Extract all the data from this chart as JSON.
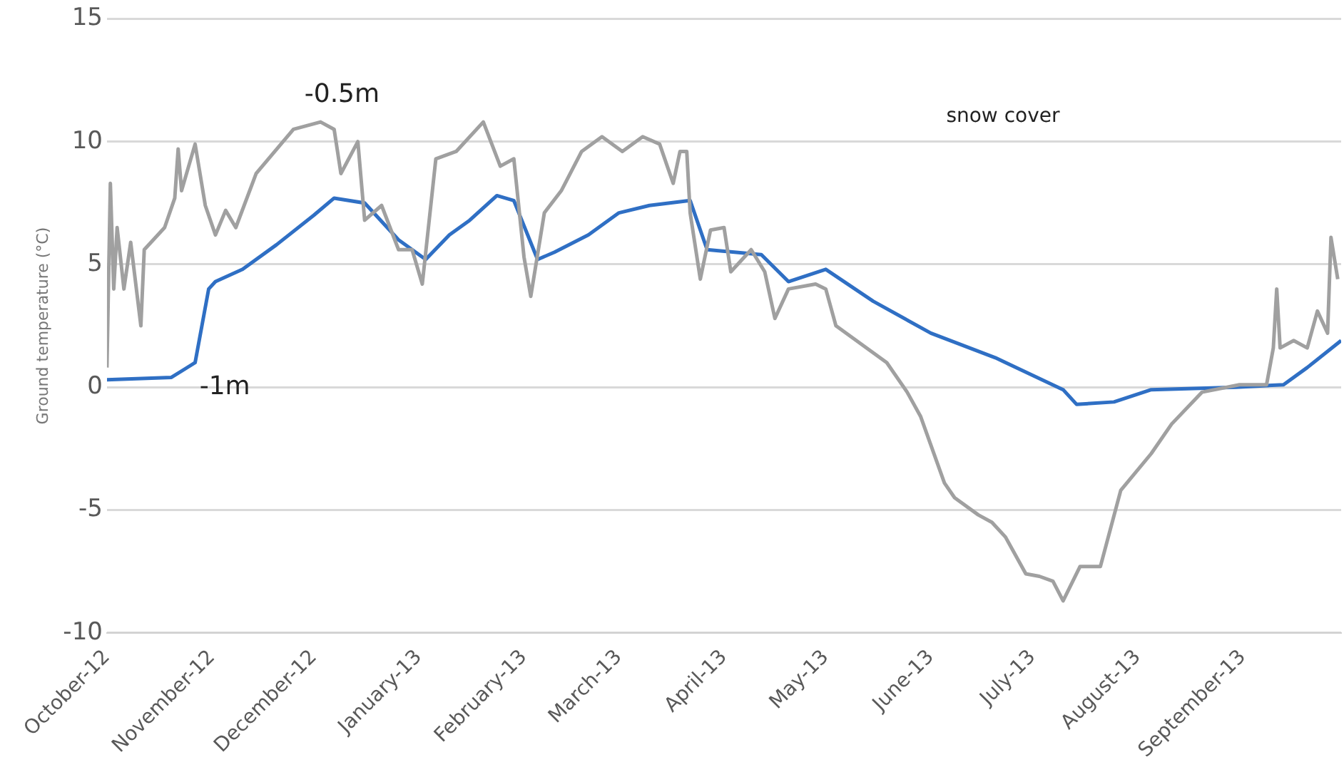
{
  "chart_data": {
    "type": "line",
    "ylabel": "Ground temperature (°C)",
    "grid": "y",
    "legend": false,
    "marker": "none",
    "line_style": "solid",
    "xlim": [
      "2012-10-01",
      "2013-09-30"
    ],
    "xticks": [
      {
        "value": "2012-10-01",
        "label": "October-12"
      },
      {
        "value": "2012-11-01",
        "label": "November-12"
      },
      {
        "value": "2012-12-01",
        "label": "December-12"
      },
      {
        "value": "2013-01-01",
        "label": "January-13"
      },
      {
        "value": "2013-02-01",
        "label": "February-13"
      },
      {
        "value": "2013-03-01",
        "label": "March-13"
      },
      {
        "value": "2013-04-01",
        "label": "April-13"
      },
      {
        "value": "2013-05-01",
        "label": "May-13"
      },
      {
        "value": "2013-06-01",
        "label": "June-13"
      },
      {
        "value": "2013-07-01",
        "label": "July-13"
      },
      {
        "value": "2013-08-01",
        "label": "August-13"
      },
      {
        "value": "2013-09-01",
        "label": "September-13"
      }
    ],
    "ylim": [
      -10,
      15
    ],
    "yticks": [
      -10,
      -5,
      0,
      5,
      10,
      15
    ],
    "series": [
      {
        "name": "-0.5m",
        "color": "#a0a0a0",
        "x": [
          "2012-10-01",
          "2012-10-02",
          "2012-10-03",
          "2012-10-04",
          "2012-10-06",
          "2012-10-08",
          "2012-10-11",
          "2012-10-12",
          "2012-10-18",
          "2012-10-21",
          "2012-10-22",
          "2012-10-23",
          "2012-10-27",
          "2012-10-30",
          "2012-11-02",
          "2012-11-05",
          "2012-11-08",
          "2012-11-14",
          "2012-11-25",
          "2012-12-03",
          "2012-12-07",
          "2012-12-09",
          "2012-12-14",
          "2012-12-16",
          "2012-12-21",
          "2012-12-26",
          "2012-12-30",
          "2013-01-02",
          "2013-01-06",
          "2013-01-12",
          "2013-01-20",
          "2013-01-25",
          "2013-01-29",
          "2013-02-01",
          "2013-02-03",
          "2013-02-07",
          "2013-02-12",
          "2013-02-18",
          "2013-02-24",
          "2013-03-02",
          "2013-03-08",
          "2013-03-13",
          "2013-03-17",
          "2013-03-19",
          "2013-03-21",
          "2013-03-22",
          "2013-03-25",
          "2013-03-28",
          "2013-04-01",
          "2013-04-03",
          "2013-04-09",
          "2013-04-13",
          "2013-04-16",
          "2013-04-20",
          "2013-04-28",
          "2013-05-01",
          "2013-05-04",
          "2013-05-19",
          "2013-05-25",
          "2013-05-29",
          "2013-06-05",
          "2013-06-08",
          "2013-06-15",
          "2013-06-19",
          "2013-06-23",
          "2013-06-29",
          "2013-07-03",
          "2013-07-07",
          "2013-07-10",
          "2013-07-15",
          "2013-07-21",
          "2013-07-27",
          "2013-08-05",
          "2013-08-11",
          "2013-08-20",
          "2013-08-31",
          "2013-09-08",
          "2013-09-10",
          "2013-09-11",
          "2013-09-12",
          "2013-09-16",
          "2013-09-20",
          "2013-09-23",
          "2013-09-26",
          "2013-09-27",
          "2013-09-29"
        ],
        "values": [
          0.8,
          8.3,
          4,
          6.5,
          4,
          5.9,
          2.5,
          5.6,
          6.5,
          7.7,
          9.7,
          8,
          9.9,
          7.4,
          6.2,
          7.2,
          6.5,
          8.7,
          10.5,
          10.8,
          10.5,
          8.7,
          10,
          6.8,
          7.4,
          5.6,
          5.6,
          4.2,
          9.3,
          9.6,
          10.8,
          9,
          9.3,
          5.3,
          3.7,
          7.1,
          8,
          9.6,
          10.2,
          9.6,
          10.2,
          9.9,
          8.3,
          9.6,
          9.6,
          7.1,
          4.4,
          6.4,
          6.5,
          4.7,
          5.6,
          4.7,
          2.8,
          4,
          4.2,
          4,
          2.5,
          1,
          -0.2,
          -1.2,
          -3.9,
          -4.5,
          -5.2,
          -5.5,
          -6.1,
          -7.6,
          -7.7,
          -7.9,
          -8.7,
          -7.3,
          -7.3,
          -4.2,
          -2.7,
          -1.5,
          -0.2,
          0.1,
          0.1,
          1.6,
          4,
          1.6,
          1.9,
          1.6,
          3.1,
          2.2,
          6.1,
          4.4
        ]
      },
      {
        "name": "-1m",
        "color": "#2f6fc4",
        "x": [
          "2012-10-01",
          "2012-10-20",
          "2012-10-27",
          "2012-10-31",
          "2012-11-02",
          "2012-11-10",
          "2012-11-20",
          "2012-12-01",
          "2012-12-07",
          "2012-12-16",
          "2012-12-26",
          "2013-01-03",
          "2013-01-10",
          "2013-01-16",
          "2013-01-24",
          "2013-01-29",
          "2013-02-05",
          "2013-02-10",
          "2013-02-20",
          "2013-03-01",
          "2013-03-10",
          "2013-03-22",
          "2013-03-27",
          "2013-04-12",
          "2013-04-20",
          "2013-05-01",
          "2013-05-15",
          "2013-06-01",
          "2013-06-20",
          "2013-07-10",
          "2013-07-14",
          "2013-07-25",
          "2013-08-05",
          "2013-08-30",
          "2013-09-13",
          "2013-09-20",
          "2013-09-30"
        ],
        "values": [
          0.3,
          0.4,
          1,
          4,
          4.3,
          4.8,
          5.8,
          7,
          7.7,
          7.5,
          6,
          5.2,
          6.2,
          6.8,
          7.8,
          7.6,
          5.2,
          5.5,
          6.2,
          7.1,
          7.4,
          7.6,
          5.6,
          5.4,
          4.3,
          4.8,
          3.5,
          2.2,
          1.2,
          -0.1,
          -0.7,
          -0.6,
          -0.1,
          0,
          0.1,
          0.8,
          1.9
        ]
      }
    ],
    "annotations": [
      "snow cover"
    ]
  }
}
